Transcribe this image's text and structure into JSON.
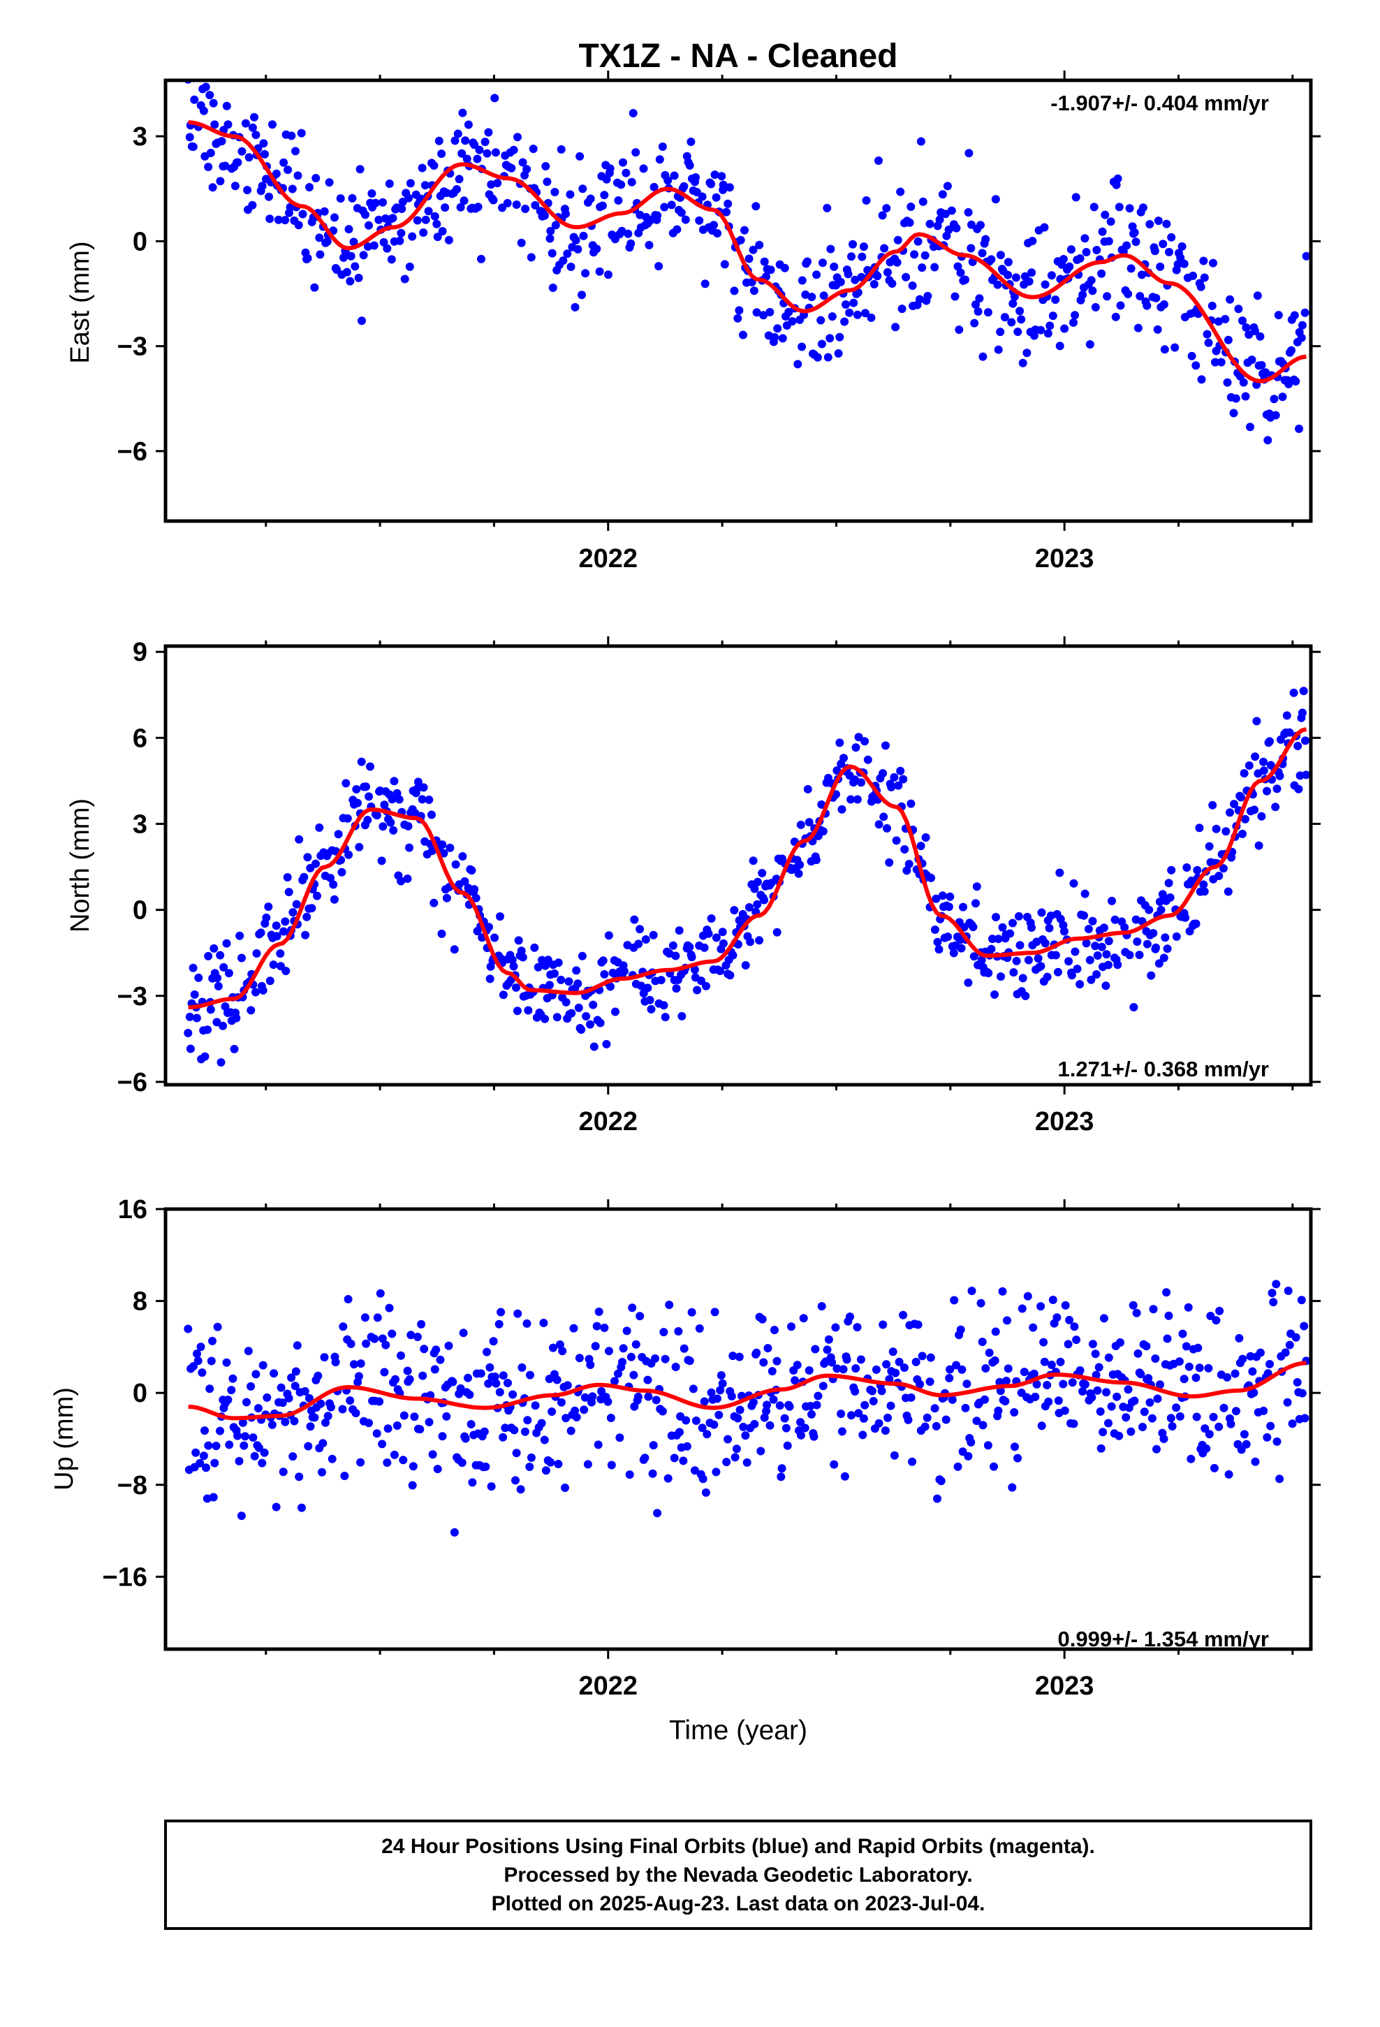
{
  "title": "TX1Z  - NA - Cleaned",
  "x_axis_label": "Time (year)",
  "footer": {
    "line1": "24 Hour Positions Using Final Orbits (blue) and Rapid Orbits (magenta).",
    "line2": "Processed by the Nevada Geodetic Laboratory.",
    "line3": "Plotted on 2025-Aug-23. Last data on 2023-Jul-04."
  },
  "colors": {
    "data": "#0000ff",
    "model": "#ff0000",
    "frame": "#000000"
  },
  "chart_data": [
    {
      "type": "scatter",
      "id": "east",
      "ylabel": "East (mm)",
      "rate": "-1.907+/- 0.404 mm/yr",
      "rate_position": "top-right",
      "xlim": [
        2021.03,
        2023.54
      ],
      "ylim": [
        -8.0,
        4.6
      ],
      "yticks": [
        3,
        0,
        -3,
        -6
      ],
      "ytick_labels": [
        "3",
        "0",
        "−3",
        "−6"
      ],
      "xticks": [
        2022,
        2023
      ],
      "xtick_labels": [
        "2022",
        "2023"
      ],
      "grid": false,
      "trend": -1.907,
      "series": [
        {
          "kind": "points",
          "color": "#0000ff",
          "seed": 11,
          "noise_sd": 0.95,
          "n": 880
        },
        {
          "kind": "model_line",
          "color": "#ff0000",
          "x": [
            2021.08,
            2021.18,
            2021.33,
            2021.43,
            2021.53,
            2021.68,
            2021.78,
            2021.93,
            2022.03,
            2022.13,
            2022.23,
            2022.33,
            2022.43,
            2022.53,
            2022.63,
            2022.68,
            2022.78,
            2022.93,
            2023.08,
            2023.13,
            2023.23,
            2023.43,
            2023.53
          ],
          "y": [
            3.4,
            3.0,
            1.0,
            -0.2,
            0.4,
            2.2,
            1.8,
            0.4,
            0.8,
            1.5,
            0.9,
            -1.1,
            -2.0,
            -1.4,
            -0.3,
            0.2,
            -0.4,
            -1.6,
            -0.6,
            -0.4,
            -1.2,
            -4.0,
            -3.3
          ]
        }
      ]
    },
    {
      "type": "scatter",
      "id": "north",
      "ylabel": "North (mm)",
      "rate": "1.271+/- 0.368 mm/yr",
      "rate_position": "bottom-right",
      "xlim": [
        2021.03,
        2023.54
      ],
      "ylim": [
        -6.1,
        9.2
      ],
      "yticks": [
        9,
        6,
        3,
        0,
        -3,
        -6
      ],
      "ytick_labels": [
        "9",
        "6",
        "3",
        "0",
        "−3",
        "−6"
      ],
      "xticks": [
        2022,
        2023
      ],
      "xtick_labels": [
        "2022",
        "2023"
      ],
      "grid": false,
      "trend": 1.271,
      "series": [
        {
          "kind": "points",
          "color": "#0000ff",
          "seed": 23,
          "noise_sd": 0.85,
          "n": 880
        },
        {
          "kind": "model_line",
          "color": "#ff0000",
          "x": [
            2021.08,
            2021.18,
            2021.28,
            2021.38,
            2021.48,
            2021.58,
            2021.68,
            2021.78,
            2021.83,
            2021.93,
            2022.03,
            2022.13,
            2022.23,
            2022.33,
            2022.43,
            2022.53,
            2022.63,
            2022.73,
            2022.83,
            2022.93,
            2023.03,
            2023.13,
            2023.23,
            2023.33,
            2023.43,
            2023.53
          ],
          "y": [
            -3.4,
            -3.1,
            -1.2,
            1.5,
            3.5,
            3.2,
            0.6,
            -2.2,
            -2.8,
            -2.9,
            -2.4,
            -2.1,
            -1.8,
            -0.2,
            2.4,
            5.0,
            3.6,
            -0.2,
            -1.6,
            -1.5,
            -1.0,
            -0.8,
            -0.2,
            1.5,
            4.5,
            6.3
          ]
        }
      ]
    },
    {
      "type": "scatter",
      "id": "up",
      "ylabel": "Up (mm)",
      "rate": "0.999+/- 1.354 mm/yr",
      "rate_position": "bottom-right",
      "xlim": [
        2021.03,
        2023.54
      ],
      "ylim": [
        -22.3,
        16.0
      ],
      "yticks": [
        16,
        8,
        0,
        -8,
        -16
      ],
      "ytick_labels": [
        "16",
        "8",
        "0",
        "−8",
        "−16"
      ],
      "xticks": [
        2022,
        2023
      ],
      "xtick_labels": [
        "2022",
        "2023"
      ],
      "grid": false,
      "trend": 0.999,
      "series": [
        {
          "kind": "points",
          "color": "#0000ff",
          "seed": 37,
          "noise_sd": 3.6,
          "n": 880
        },
        {
          "kind": "model_line",
          "color": "#ff0000",
          "x": [
            2021.08,
            2021.18,
            2021.28,
            2021.43,
            2021.58,
            2021.73,
            2021.88,
            2021.98,
            2022.08,
            2022.23,
            2022.38,
            2022.48,
            2022.63,
            2022.73,
            2022.88,
            2022.98,
            2023.13,
            2023.28,
            2023.38,
            2023.53
          ],
          "y": [
            -1.2,
            -2.2,
            -2.0,
            0.5,
            -0.5,
            -1.3,
            -0.2,
            0.7,
            0.2,
            -1.3,
            0.3,
            1.5,
            0.8,
            -0.2,
            0.6,
            1.6,
            0.9,
            -0.3,
            0.2,
            2.6
          ]
        }
      ]
    }
  ]
}
